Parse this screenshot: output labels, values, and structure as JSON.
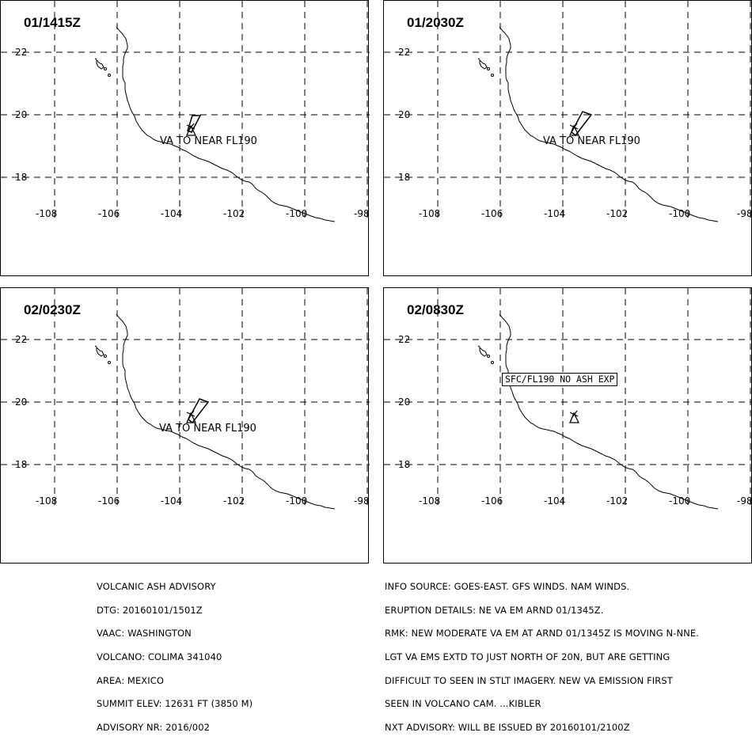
{
  "panels": [
    {
      "title": "01/1415Z",
      "label": "VA TO NEAR FL190",
      "plume": "small"
    },
    {
      "title": "01/2030Z",
      "label": "VA TO NEAR FL190",
      "plume": "medium"
    },
    {
      "title": "02/0230Z",
      "label": "VA TO NEAR FL190",
      "plume": "medium"
    },
    {
      "title": "02/0830Z",
      "label": "SFC/FL190 NO ASH EXP",
      "plume": "none"
    }
  ],
  "axes": {
    "lon_ticks": [
      "-108",
      "-106",
      "-104",
      "-102",
      "-100",
      "-98"
    ],
    "lat_ticks": [
      "22",
      "20",
      "18"
    ]
  },
  "advisory_left": [
    "VOLCANIC ASH ADVISORY",
    "DTG: 20160101/1501Z",
    "VAAC: WASHINGTON",
    "VOLCANO: COLIMA 341040",
    "AREA: MEXICO",
    "SUMMIT ELEV: 12631 FT (3850 M)",
    "ADVISORY NR: 2016/002"
  ],
  "advisory_right": [
    "INFO SOURCE: GOES-EAST. GFS WINDS. NAM WINDS.",
    "ERUPTION DETAILS: NE VA EM ARND 01/1345Z.",
    "RMK: NEW MODERATE VA EM AT ARND 01/1345Z IS MOVING N-NNE.",
    "LGT VA EMS EXTD TO JUST NORTH OF 20N, BUT ARE GETTING",
    "DIFFICULT TO SEEN IN STLT IMAGERY. NEW VA EMISSION FIRST",
    "SEEN IN VOLCANO CAM. ...KIBLER",
    "NXT ADVISORY: WILL BE ISSUED BY 20160101/2100Z"
  ]
}
